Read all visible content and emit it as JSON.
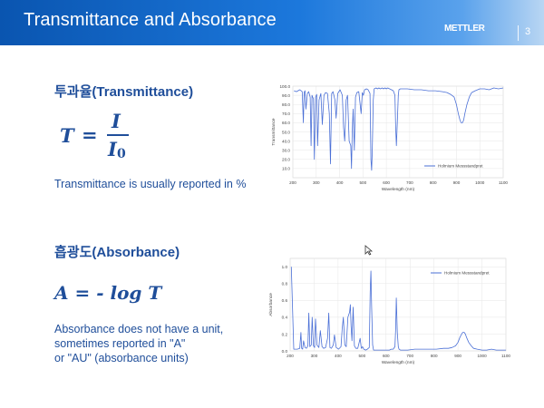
{
  "slide": {
    "title": "Transmittance and Absorbance",
    "logo": "METTLER TOLEDO",
    "page_number": "3"
  },
  "transmittance": {
    "heading": "투과율(Transmittance)",
    "formula": {
      "lhs": "T",
      "equals": "=",
      "numerator": "I",
      "denominator": "I",
      "subscript": "0"
    },
    "note": "Transmittance is usually reported in %"
  },
  "absorbance": {
    "heading": "흡광도(Absorbance)",
    "formula": "A = - log T",
    "note_lines": [
      "Absorbance does not have a unit,",
      "sometimes reported in \"A\"",
      "or \"AU\" (absorbance units)"
    ]
  },
  "chart_data": [
    {
      "type": "line",
      "xlabel": "Wavelength (nm)",
      "ylabel": "Transmittance",
      "xlim": [
        200,
        1100
      ],
      "ylim": [
        0,
        100
      ],
      "x_ticks": [
        200,
        300,
        400,
        500,
        600,
        700,
        800,
        900,
        1000,
        1100
      ],
      "y_ticks": [
        "10.0",
        "20.0",
        "30.0",
        "40.0",
        "50.0",
        "60.0",
        "70.0",
        "80.0",
        "90.0",
        "100.0"
      ],
      "legend": "Holmium Messstandpret",
      "legend_position": "right",
      "grid": true,
      "series_color": "#4a6fd6",
      "series": [
        {
          "x": [
            205,
            215,
            230,
            240,
            245,
            248,
            252,
            256,
            262,
            268,
            274,
            278,
            282,
            288,
            292,
            297,
            302,
            306,
            312,
            320,
            326,
            333,
            340,
            348,
            356,
            361,
            366,
            372,
            380,
            385,
            392,
            402,
            412,
            417,
            422,
            428,
            434,
            441,
            448,
            451,
            454,
            458,
            463,
            468,
            474,
            482,
            487,
            492,
            497,
            502,
            507,
            515,
            522,
            530,
            534,
            537,
            540,
            544,
            548,
            556,
            562,
            568,
            574,
            582,
            588,
            594,
            600,
            606,
            614,
            622,
            630,
            637,
            640,
            643,
            647,
            651,
            654,
            660,
            670,
            690,
            720,
            750,
            780,
            810,
            840,
            860,
            875,
            890,
            900,
            908,
            915,
            920,
            926,
            931,
            936,
            945,
            955,
            965,
            980,
            1000,
            1020,
            1040,
            1060,
            1080,
            1100
          ],
          "y": [
            95,
            94,
            96,
            94,
            60,
            93,
            95,
            75,
            92,
            94,
            88,
            35,
            90,
            86,
            20,
            88,
            91,
            35,
            85,
            92,
            58,
            90,
            93,
            92,
            70,
            15,
            92,
            94,
            85,
            65,
            92,
            96,
            90,
            55,
            40,
            85,
            90,
            40,
            35,
            10,
            50,
            75,
            30,
            88,
            93,
            94,
            82,
            70,
            93,
            90,
            96,
            97,
            96,
            92,
            20,
            8,
            30,
            85,
            97,
            98,
            97,
            98,
            97,
            98,
            97,
            98,
            97,
            98,
            97,
            96,
            95,
            90,
            55,
            35,
            60,
            90,
            96,
            97,
            97,
            97,
            96,
            96,
            95,
            95,
            94,
            93,
            91,
            88,
            80,
            70,
            63,
            60,
            60,
            63,
            70,
            80,
            88,
            93,
            95,
            97,
            97,
            96,
            98,
            97,
            98
          ]
        }
      ]
    },
    {
      "type": "line",
      "xlabel": "Wavelength (nm)",
      "ylabel": "Absorbance",
      "xlim": [
        200,
        1100
      ],
      "ylim": [
        0,
        1.1
      ],
      "x_ticks": [
        200,
        300,
        400,
        500,
        600,
        700,
        800,
        900,
        1000,
        1100
      ],
      "y_ticks": [
        "0.0",
        "0.2",
        "0.4",
        "0.6",
        "0.8",
        "1.0"
      ],
      "legend": "Holmium Messstandpret",
      "legend_position": "top-right",
      "grid": true,
      "series_color": "#4a6fd6",
      "series": [
        {
          "x": [
            205,
            215,
            230,
            240,
            245,
            248,
            252,
            256,
            262,
            268,
            274,
            278,
            282,
            288,
            292,
            297,
            302,
            306,
            312,
            320,
            326,
            333,
            340,
            348,
            356,
            361,
            366,
            372,
            380,
            385,
            392,
            402,
            412,
            417,
            422,
            428,
            434,
            441,
            448,
            451,
            454,
            458,
            463,
            468,
            474,
            482,
            487,
            492,
            497,
            502,
            507,
            515,
            522,
            530,
            534,
            537,
            540,
            544,
            548,
            556,
            562,
            568,
            574,
            582,
            588,
            594,
            600,
            606,
            614,
            622,
            630,
            637,
            640,
            643,
            647,
            651,
            654,
            660,
            670,
            690,
            720,
            750,
            780,
            810,
            840,
            860,
            875,
            890,
            900,
            908,
            915,
            920,
            926,
            931,
            936,
            945,
            955,
            965,
            980,
            1000,
            1020,
            1040,
            1060,
            1080,
            1100
          ],
          "y": [
            1.0,
            0.02,
            0.02,
            0.03,
            0.22,
            0.03,
            0.02,
            0.12,
            0.04,
            0.03,
            0.06,
            0.45,
            0.05,
            0.07,
            0.4,
            0.06,
            0.04,
            0.38,
            0.07,
            0.04,
            0.24,
            0.05,
            0.03,
            0.04,
            0.15,
            0.45,
            0.04,
            0.03,
            0.07,
            0.19,
            0.04,
            0.02,
            0.05,
            0.26,
            0.4,
            0.07,
            0.05,
            0.4,
            0.46,
            0.55,
            0.3,
            0.12,
            0.52,
            0.06,
            0.03,
            0.03,
            0.09,
            0.15,
            0.03,
            0.05,
            0.02,
            0.01,
            0.02,
            0.04,
            0.7,
            0.95,
            0.52,
            0.07,
            0.01,
            0.01,
            0.01,
            0.01,
            0.01,
            0.01,
            0.01,
            0.01,
            0.01,
            0.01,
            0.01,
            0.02,
            0.02,
            0.05,
            0.26,
            0.63,
            0.22,
            0.05,
            0.02,
            0.01,
            0.01,
            0.01,
            0.02,
            0.02,
            0.02,
            0.02,
            0.03,
            0.03,
            0.04,
            0.06,
            0.1,
            0.16,
            0.2,
            0.22,
            0.22,
            0.2,
            0.16,
            0.1,
            0.06,
            0.03,
            0.02,
            0.01,
            0.01,
            0.02,
            0.01,
            0.01,
            0.01
          ]
        }
      ]
    }
  ]
}
